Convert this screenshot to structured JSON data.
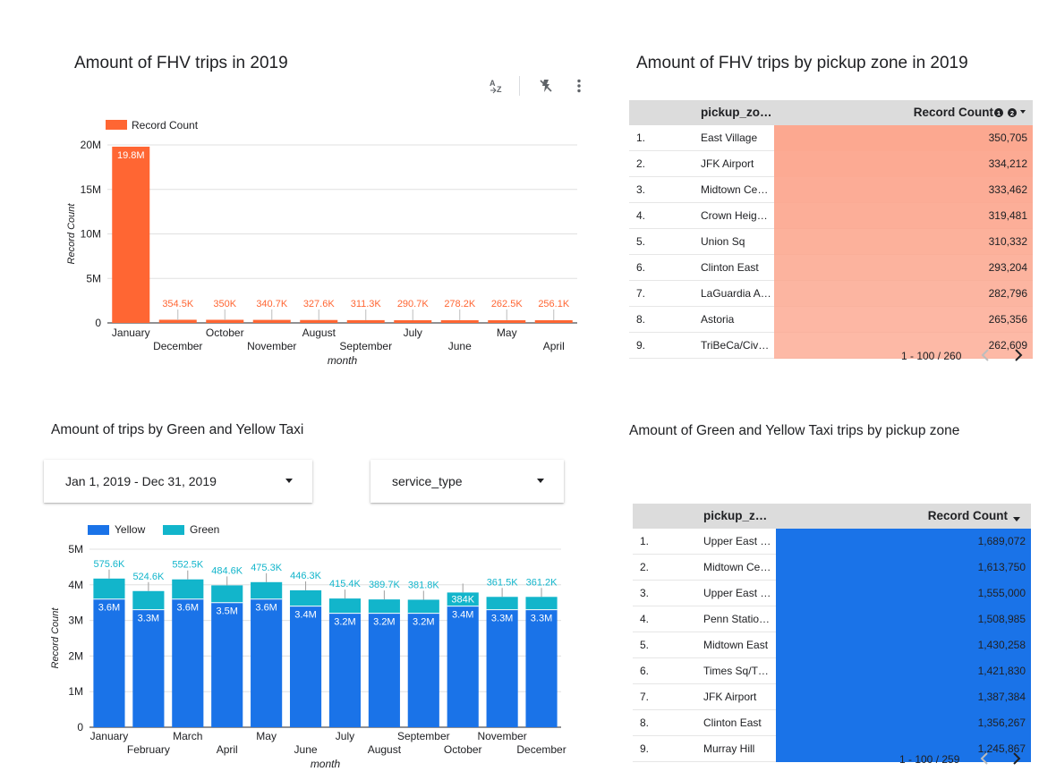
{
  "fhv_chart": {
    "title": "Amount of FHV trips in 2019",
    "toolbar": {
      "sort_icon": "sort-az-icon",
      "flash_icon": "flash-off-icon",
      "more_icon": "more-vert-icon"
    },
    "color": "#ff6633"
  },
  "fhv_table": {
    "title": "Amount of FHV trips by pickup zone in 2019",
    "columns": [
      "pickup_zo…",
      "Record Count"
    ],
    "sort_badges": [
      "1",
      "2"
    ],
    "rows": [
      {
        "idx": "1.",
        "zone": "East Village",
        "value": "350,705"
      },
      {
        "idx": "2.",
        "zone": "JFK Airport",
        "value": "334,212"
      },
      {
        "idx": "3.",
        "zone": "Midtown Ce…",
        "value": "333,462"
      },
      {
        "idx": "4.",
        "zone": "Crown Heig…",
        "value": "319,481"
      },
      {
        "idx": "5.",
        "zone": "Union Sq",
        "value": "310,332"
      },
      {
        "idx": "6.",
        "zone": "Clinton East",
        "value": "293,204"
      },
      {
        "idx": "7.",
        "zone": "LaGuardia A…",
        "value": "282,796"
      },
      {
        "idx": "8.",
        "zone": "Astoria",
        "value": "265,356"
      },
      {
        "idx": "9.",
        "zone": "TriBeCa/Civ…",
        "value": "262,609"
      }
    ],
    "bar_color": "#fca890",
    "pager": "1 - 100 / 260"
  },
  "taxi_chart": {
    "title": "Amount of trips by Green and Yellow Taxi",
    "date_control": "Jan 1, 2019 - Dec 31, 2019",
    "service_control": "service_type",
    "colors": {
      "yellow": "#1a73e8",
      "green": "#12b5cb"
    }
  },
  "taxi_table": {
    "title": "Amount of  Green and Yellow Taxi trips by pickup zone",
    "columns": [
      "pickup_z…",
      "Record Count"
    ],
    "rows": [
      {
        "idx": "1.",
        "zone": "Upper East …",
        "value": "1,689,072"
      },
      {
        "idx": "2.",
        "zone": "Midtown Ce…",
        "value": "1,613,750"
      },
      {
        "idx": "3.",
        "zone": "Upper East …",
        "value": "1,555,000"
      },
      {
        "idx": "4.",
        "zone": "Penn Statio…",
        "value": "1,508,985"
      },
      {
        "idx": "5.",
        "zone": "Midtown East",
        "value": "1,430,258"
      },
      {
        "idx": "6.",
        "zone": "Times Sq/T…",
        "value": "1,421,830"
      },
      {
        "idx": "7.",
        "zone": "JFK Airport",
        "value": "1,387,384"
      },
      {
        "idx": "8.",
        "zone": "Clinton East",
        "value": "1,356,267"
      },
      {
        "idx": "9.",
        "zone": "Murray Hill",
        "value": "1,245,867"
      }
    ],
    "bar_color": "#1a73e8",
    "pager": "1 - 100 / 259"
  },
  "chart_data": [
    {
      "type": "bar",
      "categories": [
        "January",
        "December",
        "October",
        "November",
        "August",
        "September",
        "July",
        "June",
        "May",
        "April"
      ],
      "values": [
        19800000,
        354500,
        350000,
        340700,
        327600,
        311300,
        290700,
        278200,
        262500,
        256100
      ],
      "data_labels": [
        "19.8M",
        "354.5K",
        "350K",
        "340.7K",
        "327.6K",
        "311.3K",
        "290.7K",
        "278.2K",
        "262.5K",
        "256.1K"
      ],
      "series": [
        {
          "name": "Record Count",
          "values": [
            19800000,
            354500,
            350000,
            340700,
            327600,
            311300,
            290700,
            278200,
            262500,
            256100
          ]
        }
      ],
      "xlabel": "month",
      "ylabel": "Record Count",
      "ylim": [
        0,
        20000000
      ],
      "yticks": [
        "0",
        "5M",
        "10M",
        "15M",
        "20M"
      ],
      "legend": "top-left",
      "grid": true
    },
    {
      "type": "bar",
      "stacked": true,
      "categories": [
        "January",
        "February",
        "March",
        "April",
        "May",
        "June",
        "July",
        "August",
        "September",
        "October",
        "November",
        "December"
      ],
      "series": [
        {
          "name": "Yellow",
          "values": [
            3600000,
            3300000,
            3600000,
            3500000,
            3600000,
            3400000,
            3200000,
            3200000,
            3200000,
            3400000,
            3300000,
            3300000
          ],
          "labels": [
            "3.6M",
            "3.3M",
            "3.6M",
            "3.5M",
            "3.6M",
            "3.4M",
            "3.2M",
            "3.2M",
            "3.2M",
            "3.4M",
            "3.3M",
            "3.3M"
          ]
        },
        {
          "name": "Green",
          "values": [
            575600,
            524600,
            552500,
            484600,
            475300,
            446300,
            415400,
            389700,
            381800,
            384000,
            361500,
            361200
          ],
          "labels": [
            "575.6K",
            "524.6K",
            "552.5K",
            "484.6K",
            "475.3K",
            "446.3K",
            "415.4K",
            "389.7K",
            "381.8K",
            "384K",
            "361.5K",
            "361.2K"
          ]
        }
      ],
      "xlabel": "month",
      "ylabel": "Record Count",
      "ylim": [
        0,
        5000000
      ],
      "yticks": [
        "0",
        "1M",
        "2M",
        "3M",
        "4M",
        "5M"
      ],
      "legend": "top-left",
      "grid": true
    }
  ]
}
